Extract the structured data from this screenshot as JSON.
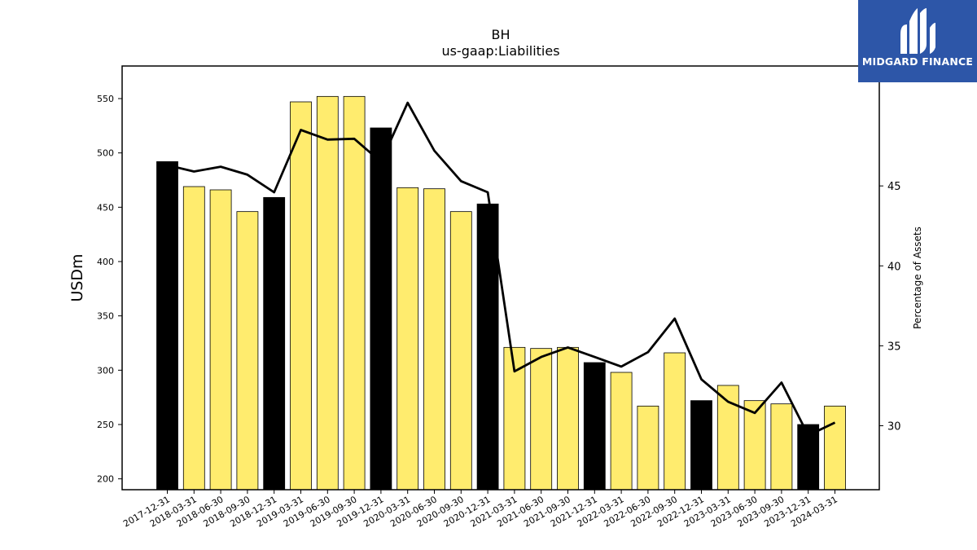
{
  "chart_data": {
    "type": "bar",
    "title": "BH",
    "subtitle": "us-gaap:Liabilities",
    "ylabel": "USDm",
    "y2label": "Percentage of Assets",
    "ylim": [
      190,
      580
    ],
    "y2lim": [
      26,
      52.5
    ],
    "yticks": [
      200,
      250,
      300,
      350,
      400,
      450,
      500,
      550
    ],
    "y2ticks": [
      30,
      35,
      40,
      45
    ],
    "categories": [
      "2017-12-31",
      "2018-03-31",
      "2018-06-30",
      "2018-09-30",
      "2018-12-31",
      "2019-03-31",
      "2019-06-30",
      "2019-09-30",
      "2019-12-31",
      "2020-03-31",
      "2020-06-30",
      "2020-09-30",
      "2020-12-31",
      "2021-03-31",
      "2021-06-30",
      "2021-09-30",
      "2021-12-31",
      "2022-03-31",
      "2022-06-30",
      "2022-09-30",
      "2022-12-31",
      "2023-03-31",
      "2023-06-30",
      "2023-09-30",
      "2023-12-31",
      "2024-03-31"
    ],
    "values": [
      492,
      469,
      466,
      446,
      459,
      547,
      552,
      552,
      523,
      468,
      467,
      446,
      453,
      321,
      320,
      321,
      307,
      298,
      267,
      316,
      272,
      286,
      272,
      269,
      250,
      267
    ],
    "highlight": [
      true,
      false,
      false,
      false,
      true,
      false,
      false,
      false,
      true,
      false,
      false,
      false,
      true,
      false,
      false,
      false,
      true,
      false,
      false,
      false,
      true,
      false,
      false,
      false,
      true,
      false
    ],
    "colors": {
      "highlight_bar": "#000000",
      "bar": "#ffec6e",
      "line": "#000000"
    },
    "series": [
      {
        "values": [
          492,
          469,
          466,
          446,
          459,
          547,
          552,
          552,
          523,
          468,
          467,
          446,
          453,
          321,
          320,
          321,
          307,
          298,
          267,
          316,
          272,
          286,
          272,
          269,
          250,
          267
        ]
      },
      {
        "values": [
          46.3,
          45.9,
          46.2,
          45.7,
          44.6,
          48.5,
          47.9,
          47.95,
          46.5,
          50.2,
          47.2,
          45.3,
          44.6,
          33.4,
          34.3,
          34.9,
          34.3,
          33.7,
          34.6,
          36.7,
          32.9,
          31.5,
          30.8,
          32.7,
          29.4,
          30.2
        ]
      }
    ]
  },
  "logo": {
    "text": "MIDGARD FINANCE"
  }
}
